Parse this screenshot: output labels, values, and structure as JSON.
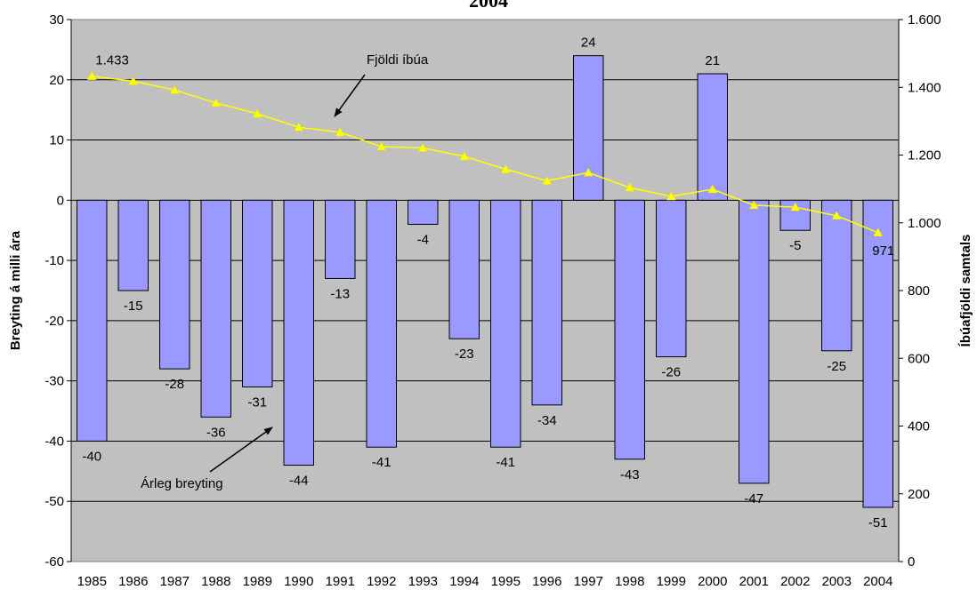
{
  "chart_data": {
    "type": "bar",
    "title_fragment": "2004",
    "categories": [
      "1985",
      "1986",
      "1987",
      "1988",
      "1989",
      "1990",
      "1991",
      "1992",
      "1993",
      "1994",
      "1995",
      "1996",
      "1997",
      "1998",
      "1999",
      "2000",
      "2001",
      "2002",
      "2003",
      "2004"
    ],
    "bar_series": {
      "values": [
        -40,
        -15,
        -28,
        -36,
        -31,
        -44,
        -13,
        -41,
        -4,
        -23,
        -41,
        -34,
        24,
        -43,
        -26,
        21,
        -47,
        -5,
        -25,
        -51
      ],
      "color": "#9999ff"
    },
    "line_series": {
      "values": [
        1433,
        1418,
        1392,
        1354,
        1322,
        1282,
        1267,
        1225,
        1221,
        1196,
        1158,
        1124,
        1148,
        1104,
        1078,
        1099,
        1052,
        1046,
        1021,
        971
      ],
      "color": "#ffff00"
    },
    "line_labels": [
      {
        "index": 0,
        "text": "1.433"
      },
      {
        "index": 19,
        "text": "971"
      }
    ],
    "ylabel_left": "Breyting á milli ára",
    "ylabel_right": "Íbúafjöldi samtals",
    "ylim_left": [
      -60,
      30
    ],
    "yticks_left": [
      30,
      20,
      10,
      0,
      -10,
      -20,
      -30,
      -40,
      -50,
      -60
    ],
    "ylim_right": [
      0,
      1600
    ],
    "yticks_right": [
      {
        "value": 1600,
        "label": "1.600"
      },
      {
        "value": 1400,
        "label": "1.400"
      },
      {
        "value": 1200,
        "label": "1.200"
      },
      {
        "value": 1000,
        "label": "1.000"
      },
      {
        "value": 800,
        "label": "800"
      },
      {
        "value": 600,
        "label": "600"
      },
      {
        "value": 400,
        "label": "400"
      },
      {
        "value": 200,
        "label": "200"
      },
      {
        "value": 0,
        "label": "0"
      }
    ],
    "annotations": [
      {
        "text": "Fjöldi íbúa",
        "points_to": "line"
      },
      {
        "text": "Árleg breyting",
        "points_to": "bars"
      }
    ],
    "plot_background": "#c0c0c0",
    "grid": true
  }
}
